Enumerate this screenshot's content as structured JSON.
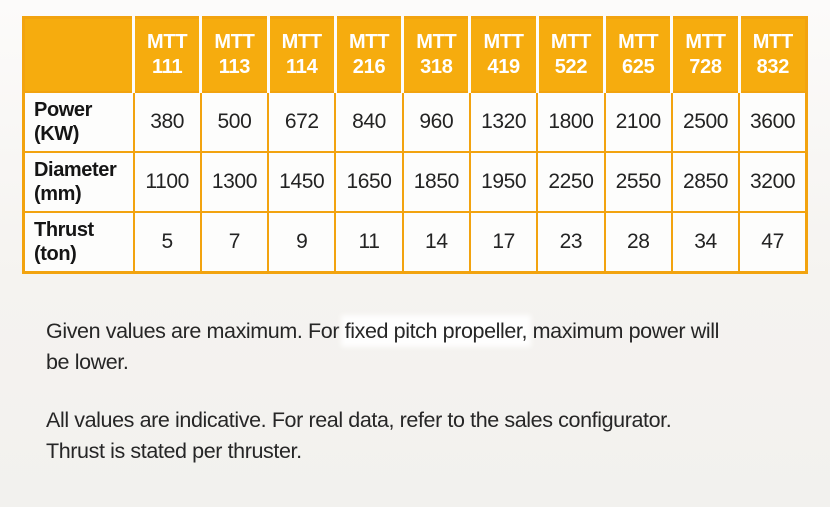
{
  "colors": {
    "accent_orange": "#f6ac0e",
    "table_border": "#f2a30f",
    "header_text": "#ffffff",
    "body_text": "#232323",
    "page_background": "#f3f2ef",
    "highlight_background": "#fefefe"
  },
  "table": {
    "columns": [
      "MTT\n111",
      "MTT\n113",
      "MTT\n114",
      "MTT\n216",
      "MTT\n318",
      "MTT\n419",
      "MTT\n522",
      "MTT\n625",
      "MTT\n728",
      "MTT\n832"
    ],
    "rows": [
      {
        "label": "Power\n(KW)",
        "values": [
          380,
          500,
          672,
          840,
          960,
          1320,
          1800,
          2100,
          2500,
          3600
        ]
      },
      {
        "label": "Diameter\n(mm)",
        "values": [
          1100,
          1300,
          1450,
          1650,
          1850,
          1950,
          2250,
          2550,
          2850,
          3200
        ]
      },
      {
        "label": "Thrust\n(ton)",
        "values": [
          5,
          7,
          9,
          11,
          14,
          17,
          23,
          28,
          34,
          47
        ]
      }
    ]
  },
  "notes": [
    {
      "line1_pre": "Given values are maximum. For ",
      "line1_highlight": "fixed pitch propeller,",
      "line1_post": " maximum power will",
      "line2": "be lower."
    },
    {
      "line1": "All values are indicative. For real data, refer to the sales configurator.",
      "line2": "Thrust is stated per thruster."
    }
  ],
  "chart_data": {
    "type": "table",
    "title": "MTT thruster specifications",
    "columns": [
      "",
      "MTT 111",
      "MTT 113",
      "MTT 114",
      "MTT 216",
      "MTT 318",
      "MTT 419",
      "MTT 522",
      "MTT 625",
      "MTT 728",
      "MTT 832"
    ],
    "rows": [
      [
        "Power (KW)",
        380,
        500,
        672,
        840,
        960,
        1320,
        1800,
        2100,
        2500,
        3600
      ],
      [
        "Diameter (mm)",
        1100,
        1300,
        1450,
        1650,
        1850,
        1950,
        2250,
        2550,
        2850,
        3200
      ],
      [
        "Thrust (ton)",
        5,
        7,
        9,
        11,
        14,
        17,
        23,
        28,
        34,
        47
      ]
    ],
    "annotations": [
      "Given values are maximum. For fixed pitch propeller, maximum power will be lower.",
      "All values are indicative. For real data, refer to the sales configurator. Thrust is stated per thruster."
    ]
  }
}
